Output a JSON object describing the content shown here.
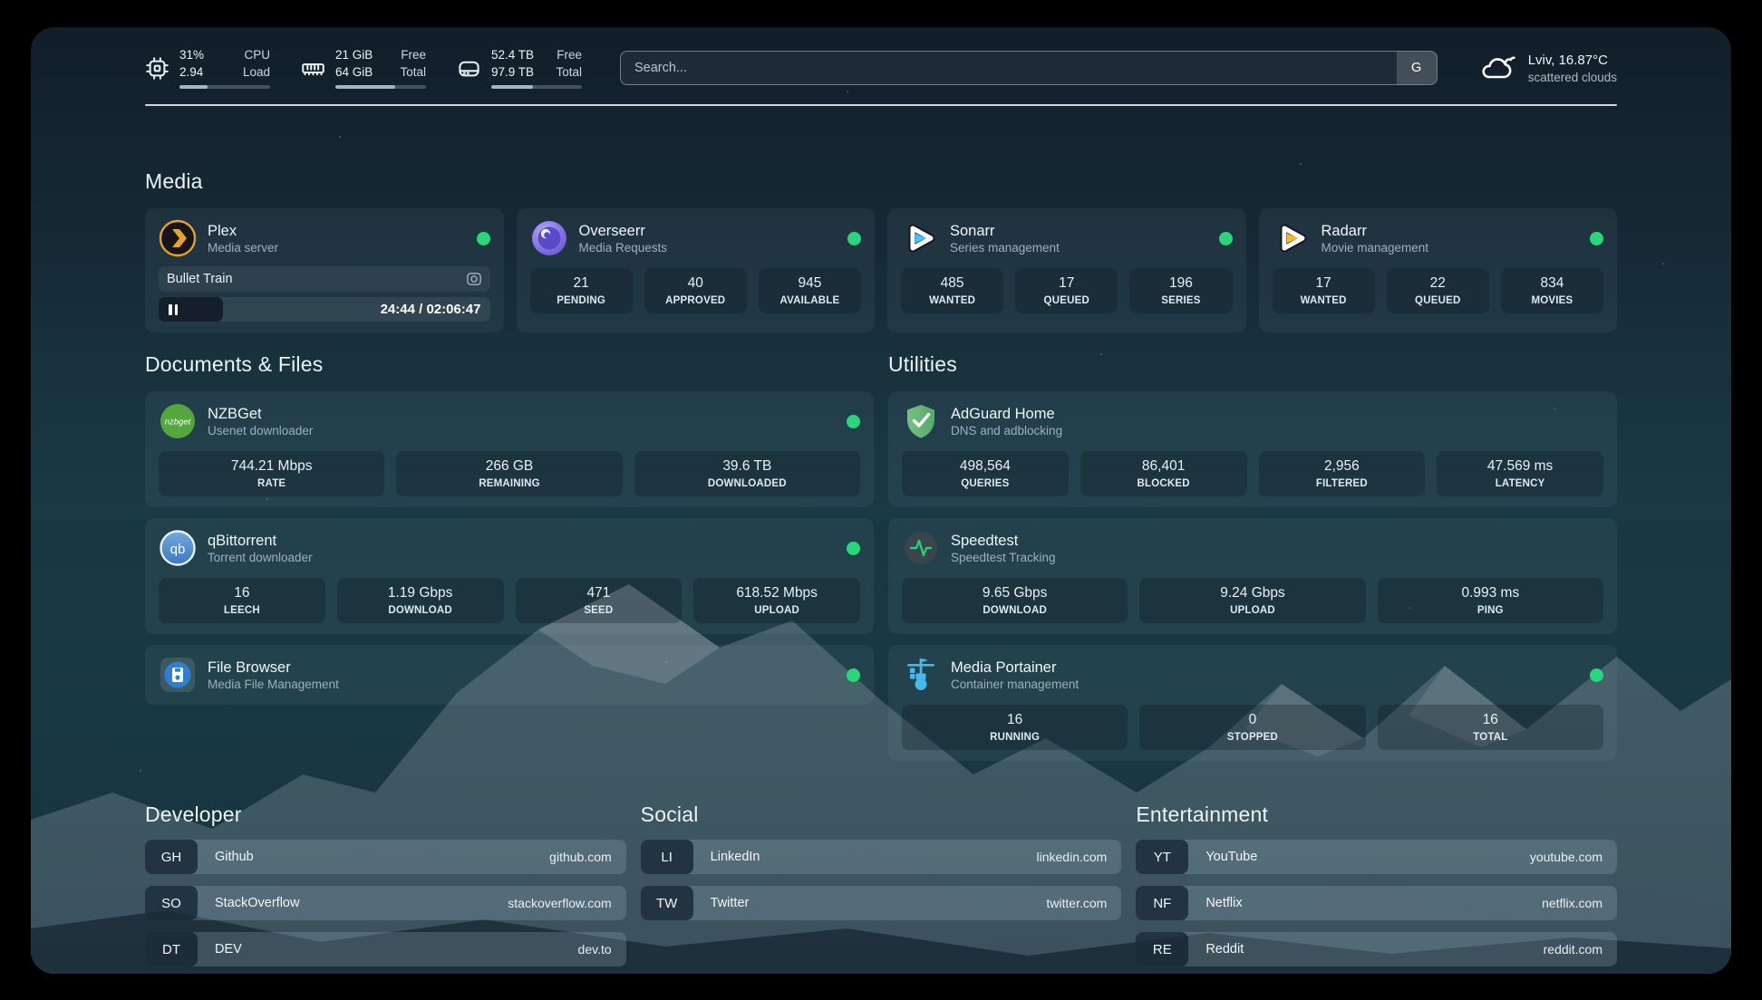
{
  "colors": {
    "status_online": "#2ad57c",
    "plex_accent": "#e8a22b",
    "radarr_accent": "#ffb829",
    "sonarr_accent": "#3ec6f4",
    "adguard_green": "#67b279",
    "portainer_blue": "#45b8ec"
  },
  "header": {
    "resources": [
      {
        "icon": "cpu-icon",
        "rows": [
          {
            "value": "31%",
            "label": "CPU"
          },
          {
            "value": "2.94",
            "label": "Load"
          }
        ],
        "progress_pct": 31
      },
      {
        "icon": "memory-icon",
        "rows": [
          {
            "value": "21 GiB",
            "label": "Free"
          },
          {
            "value": "64 GiB",
            "label": "Total"
          }
        ],
        "progress_pct": 66
      },
      {
        "icon": "disk-icon",
        "rows": [
          {
            "value": "52.4 TB",
            "label": "Free"
          },
          {
            "value": "97.9 TB",
            "label": "Total"
          }
        ],
        "progress_pct": 46
      }
    ],
    "search": {
      "placeholder": "Search...",
      "button_label": "G"
    },
    "weather": {
      "icon": "cloud-icon",
      "location": "Lviv, 16.87°C",
      "condition": "scattered clouds"
    }
  },
  "sections": {
    "media": {
      "title": "Media",
      "services": [
        {
          "icon": "plex-icon",
          "name": "Plex",
          "desc": "Media server",
          "online": true,
          "now_playing": {
            "title": "Bullet Train",
            "time": "24:44 / 02:06:47",
            "progress_pct": 19.5
          }
        },
        {
          "icon": "overseerr-icon",
          "name": "Overseerr",
          "desc": "Media Requests",
          "online": true,
          "stats": [
            {
              "value": "21",
              "label": "PENDING"
            },
            {
              "value": "40",
              "label": "APPROVED"
            },
            {
              "value": "945",
              "label": "AVAILABLE"
            }
          ]
        },
        {
          "icon": "sonarr-icon",
          "name": "Sonarr",
          "desc": "Series management",
          "online": true,
          "stats": [
            {
              "value": "485",
              "label": "WANTED"
            },
            {
              "value": "17",
              "label": "QUEUED"
            },
            {
              "value": "196",
              "label": "SERIES"
            }
          ]
        },
        {
          "icon": "radarr-icon",
          "name": "Radarr",
          "desc": "Movie management",
          "online": true,
          "stats": [
            {
              "value": "17",
              "label": "WANTED"
            },
            {
              "value": "22",
              "label": "QUEUED"
            },
            {
              "value": "834",
              "label": "MOVIES"
            }
          ]
        }
      ]
    },
    "documents": {
      "title": "Documents & Files",
      "services": [
        {
          "icon": "nzbget-icon",
          "name": "NZBGet",
          "desc": "Usenet downloader",
          "online": true,
          "stats": [
            {
              "value": "744.21 Mbps",
              "label": "RATE"
            },
            {
              "value": "266 GB",
              "label": "REMAINING"
            },
            {
              "value": "39.6 TB",
              "label": "DOWNLOADED"
            }
          ]
        },
        {
          "icon": "qbittorrent-icon",
          "name": "qBittorrent",
          "desc": "Torrent downloader",
          "online": true,
          "stats": [
            {
              "value": "16",
              "label": "LEECH"
            },
            {
              "value": "1.19 Gbps",
              "label": "DOWNLOAD"
            },
            {
              "value": "471",
              "label": "SEED"
            },
            {
              "value": "618.52 Mbps",
              "label": "UPLOAD"
            }
          ]
        },
        {
          "icon": "filebrowser-icon",
          "name": "File Browser",
          "desc": "Media File Management",
          "online": true
        }
      ]
    },
    "utilities": {
      "title": "Utilities",
      "services": [
        {
          "icon": "adguard-icon",
          "name": "AdGuard Home",
          "desc": "DNS and adblocking",
          "online": false,
          "stats": [
            {
              "value": "498,564",
              "label": "QUERIES"
            },
            {
              "value": "86,401",
              "label": "BLOCKED"
            },
            {
              "value": "2,956",
              "label": "FILTERED"
            },
            {
              "value": "47.569 ms",
              "label": "LATENCY"
            }
          ]
        },
        {
          "icon": "speedtest-icon",
          "name": "Speedtest",
          "desc": "Speedtest Tracking",
          "online": false,
          "stats": [
            {
              "value": "9.65 Gbps",
              "label": "DOWNLOAD"
            },
            {
              "value": "9.24 Gbps",
              "label": "UPLOAD"
            },
            {
              "value": "0.993 ms",
              "label": "PING"
            }
          ]
        },
        {
          "icon": "portainer-icon",
          "name": "Media Portainer",
          "desc": "Container management",
          "online": true,
          "stats": [
            {
              "value": "16",
              "label": "RUNNING"
            },
            {
              "value": "0",
              "label": "STOPPED"
            },
            {
              "value": "16",
              "label": "TOTAL"
            }
          ]
        }
      ]
    },
    "bookmarks": [
      {
        "title": "Developer",
        "items": [
          {
            "abbr": "GH",
            "name": "Github",
            "url": "github.com"
          },
          {
            "abbr": "SO",
            "name": "StackOverflow",
            "url": "stackoverflow.com"
          },
          {
            "abbr": "DT",
            "name": "DEV",
            "url": "dev.to"
          }
        ]
      },
      {
        "title": "Social",
        "items": [
          {
            "abbr": "LI",
            "name": "LinkedIn",
            "url": "linkedin.com"
          },
          {
            "abbr": "TW",
            "name": "Twitter",
            "url": "twitter.com"
          }
        ]
      },
      {
        "title": "Entertainment",
        "items": [
          {
            "abbr": "YT",
            "name": "YouTube",
            "url": "youtube.com"
          },
          {
            "abbr": "NF",
            "name": "Netflix",
            "url": "netflix.com"
          },
          {
            "abbr": "RE",
            "name": "Reddit",
            "url": "reddit.com"
          }
        ]
      }
    ]
  }
}
